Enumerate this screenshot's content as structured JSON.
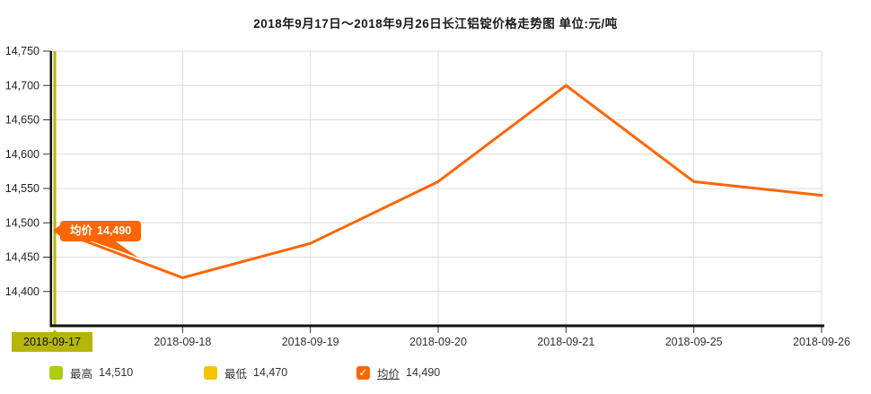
{
  "title": "2018年9月17日～2018年9月26日长江铝锭价格走势图 单位:元/吨",
  "selected_date": "2018-09-17",
  "callout": {
    "label": "均价",
    "value": "14,490"
  },
  "legend": [
    {
      "label": "最高",
      "value": "14,510",
      "swatch_color": "#aacc11",
      "check": ""
    },
    {
      "label": "最低",
      "value": "14,470",
      "swatch_color": "#f3c400",
      "check": ""
    },
    {
      "label": "均价",
      "value": "14,490",
      "swatch_color": "#ff6600",
      "check": "✓"
    }
  ],
  "colors": {
    "line": "#ff6600",
    "grid": "#dcdcdc",
    "axis": "#111111",
    "date_highlight": "#b5b50a",
    "text": "#333333"
  },
  "chart_data": {
    "type": "line",
    "title": "2018年9月17日～2018年9月26日长江铝锭价格走势图",
    "ylabel": "元/吨",
    "x": [
      "2018-09-17",
      "2018-09-18",
      "2018-09-19",
      "2018-09-20",
      "2018-09-21",
      "2018-09-25",
      "2018-09-26"
    ],
    "series": [
      {
        "name": "均价",
        "color": "#ff6600",
        "values": [
          14490,
          14420,
          14470,
          14560,
          14700,
          14560,
          14540
        ]
      }
    ],
    "ylim": [
      14350,
      14750
    ],
    "yticks": [
      {
        "value": 14750,
        "label": "14,750"
      },
      {
        "value": 14700,
        "label": "14,700"
      },
      {
        "value": 14650,
        "label": "14,650"
      },
      {
        "value": 14600,
        "label": "14,600"
      },
      {
        "value": 14550,
        "label": "14,550"
      },
      {
        "value": 14500,
        "label": "14,500"
      },
      {
        "value": 14450,
        "label": "14,450"
      },
      {
        "value": 14400,
        "label": "14,400"
      }
    ],
    "grid": true,
    "legend_position": "bottom",
    "summary": {
      "highest": 14510,
      "lowest": 14470,
      "average": 14490
    }
  }
}
